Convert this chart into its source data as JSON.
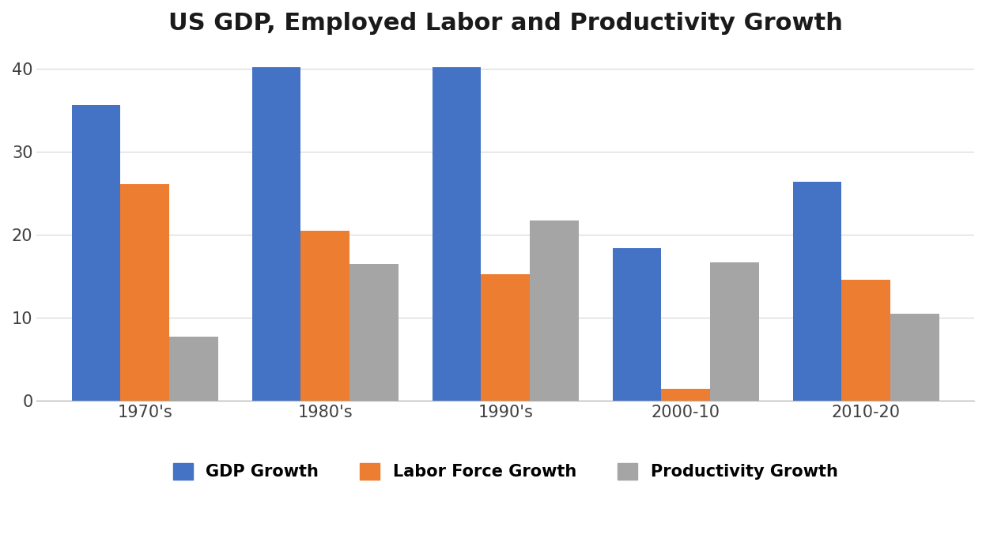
{
  "title": "US GDP, Employed Labor and Productivity Growth",
  "categories": [
    "1970's",
    "1980's",
    "1990's",
    "2000-10",
    "2010-20"
  ],
  "series": {
    "GDP Growth": [
      35.6,
      40.2,
      40.2,
      18.4,
      26.4
    ],
    "Labor Force Growth": [
      26.1,
      20.5,
      15.3,
      1.5,
      14.6
    ],
    "Productivity Growth": [
      7.7,
      16.5,
      21.7,
      16.7,
      10.5
    ]
  },
  "colors": {
    "GDP Growth": "#4472C4",
    "Labor Force Growth": "#ED7D31",
    "Productivity Growth": "#A5A5A5"
  },
  "ylim": [
    0,
    42
  ],
  "yticks": [
    0,
    10,
    20,
    30,
    40
  ],
  "bar_width": 0.27,
  "title_fontsize": 22,
  "tick_fontsize": 15,
  "legend_fontsize": 15,
  "background_color": "#FFFFFF",
  "grid_color": "#D9D9D9"
}
